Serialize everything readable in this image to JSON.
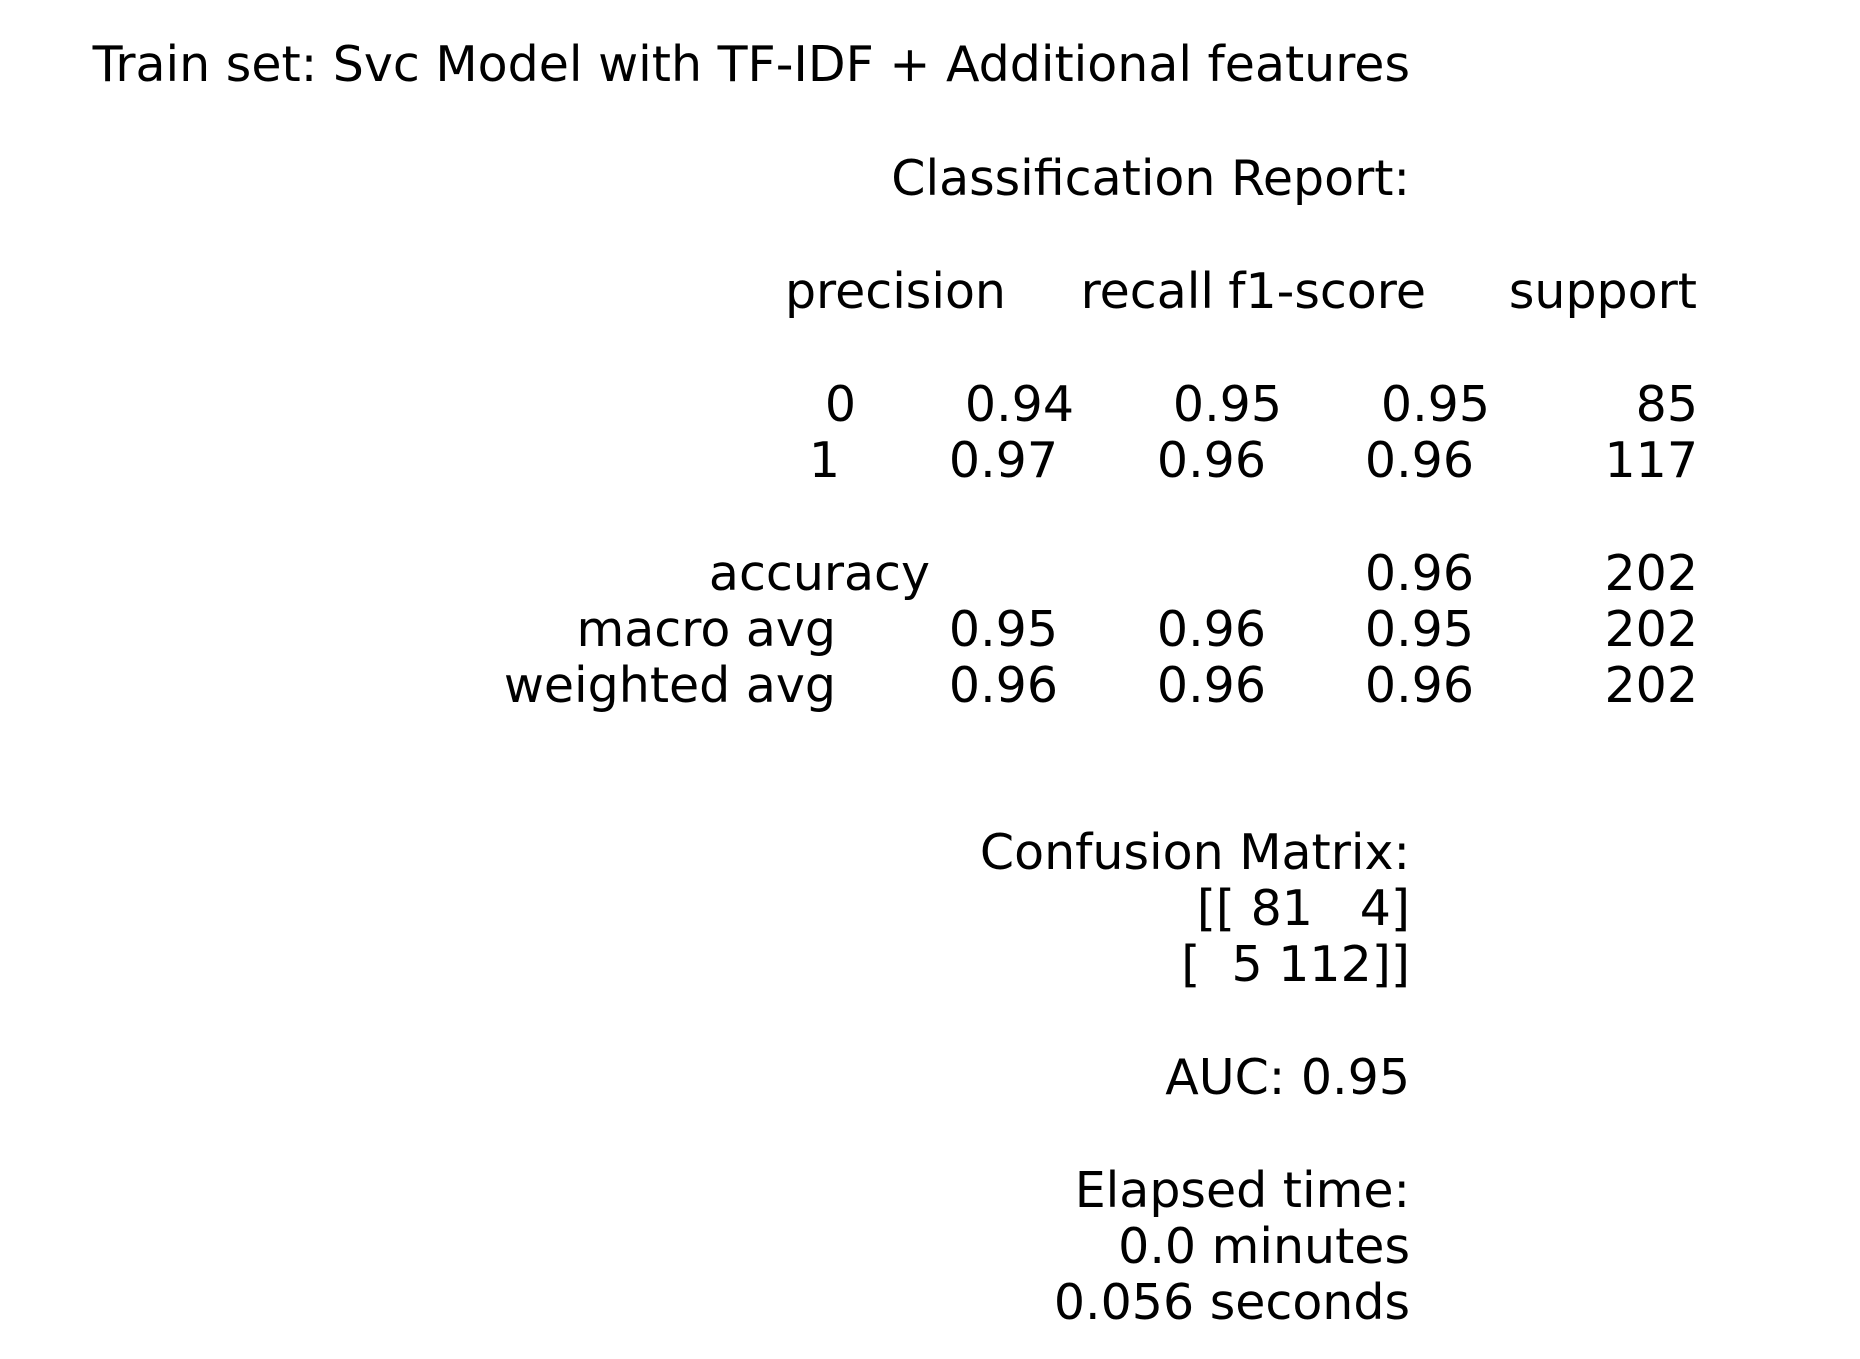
{
  "report": {
    "title": "Train set: Svc Model with TF-IDF + Additional features",
    "classification_heading": "Classification Report:",
    "columns": {
      "precision": "precision",
      "recall": "recall",
      "f1": "f1-score",
      "support": "support"
    },
    "rows": [
      {
        "label": "0",
        "precision": "0.94",
        "recall": "0.95",
        "f1": "0.95",
        "support": "85"
      },
      {
        "label": "1",
        "precision": "0.97",
        "recall": "0.96",
        "f1": "0.96",
        "support": "117"
      }
    ],
    "accuracy": {
      "label": "accuracy",
      "f1": "0.96",
      "support": "202"
    },
    "averages": [
      {
        "label": "macro avg",
        "precision": "0.95",
        "recall": "0.96",
        "f1": "0.95",
        "support": "202"
      },
      {
        "label": "weighted avg",
        "precision": "0.96",
        "recall": "0.96",
        "f1": "0.96",
        "support": "202"
      }
    ],
    "confusion": {
      "heading": "Confusion Matrix:",
      "row1": "[[ 81   4]",
      "row2": "[  5 112]]"
    },
    "auc": "AUC: 0.95",
    "elapsed": {
      "heading": "Elapsed time:",
      "minutes": "0.0 minutes",
      "seconds": "0.056 seconds"
    }
  }
}
